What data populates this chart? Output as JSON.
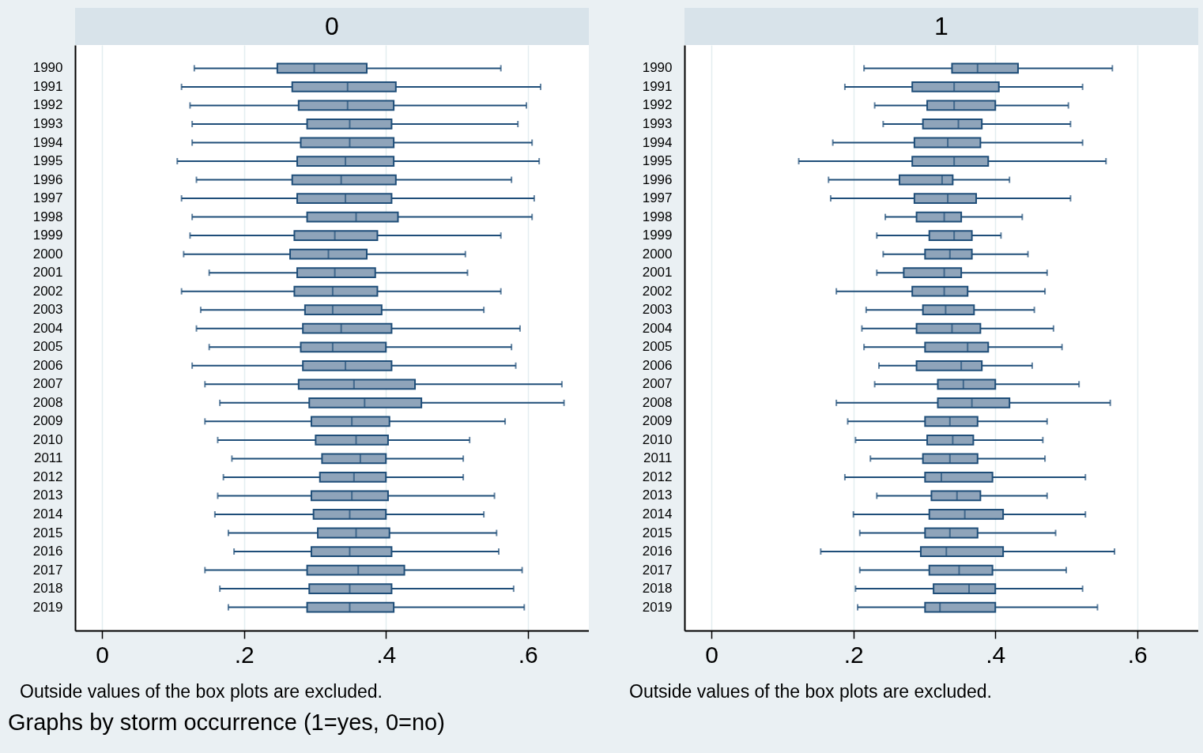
{
  "chart_data": [
    {
      "type": "box",
      "title": "0",
      "orientation": "horizontal",
      "grid": "x",
      "xlim": [
        -0.038,
        0.686
      ],
      "xticks": [
        0,
        {
          "value": 0.2,
          "label": ".2"
        },
        {
          "value": 0.4,
          "label": ".4"
        },
        {
          "value": 0.6,
          "label": ".6"
        }
      ],
      "categories": [
        "1990",
        "1991",
        "1992",
        "1993",
        "1994",
        "1995",
        "1996",
        "1997",
        "1998",
        "1999",
        "2000",
        "2001",
        "2002",
        "2003",
        "2004",
        "2005",
        "2006",
        "2007",
        "2008",
        "2009",
        "2010",
        "2011",
        "2012",
        "2013",
        "2014",
        "2015",
        "2016",
        "2017",
        "2018",
        "2019"
      ],
      "series": [
        {
          "color": "#8fa4ba",
          "boxes": [
            {
              "low": 0.13,
              "q1": 0.247,
              "median": 0.299,
              "q3": 0.373,
              "high": 0.562
            },
            {
              "low": 0.112,
              "q1": 0.268,
              "median": 0.346,
              "q3": 0.414,
              "high": 0.618
            },
            {
              "low": 0.124,
              "q1": 0.277,
              "median": 0.346,
              "q3": 0.411,
              "high": 0.598
            },
            {
              "low": 0.127,
              "q1": 0.289,
              "median": 0.349,
              "q3": 0.408,
              "high": 0.586
            },
            {
              "low": 0.127,
              "q1": 0.28,
              "median": 0.349,
              "q3": 0.411,
              "high": 0.606
            },
            {
              "low": 0.106,
              "q1": 0.275,
              "median": 0.343,
              "q3": 0.411,
              "high": 0.616
            },
            {
              "low": 0.133,
              "q1": 0.268,
              "median": 0.337,
              "q3": 0.414,
              "high": 0.577
            },
            {
              "low": 0.112,
              "q1": 0.275,
              "median": 0.343,
              "q3": 0.408,
              "high": 0.609
            },
            {
              "low": 0.127,
              "q1": 0.289,
              "median": 0.358,
              "q3": 0.417,
              "high": 0.606
            },
            {
              "low": 0.124,
              "q1": 0.271,
              "median": 0.328,
              "q3": 0.388,
              "high": 0.562
            },
            {
              "low": 0.115,
              "q1": 0.265,
              "median": 0.319,
              "q3": 0.373,
              "high": 0.512
            },
            {
              "low": 0.151,
              "q1": 0.275,
              "median": 0.328,
              "q3": 0.385,
              "high": 0.515
            },
            {
              "low": 0.112,
              "q1": 0.271,
              "median": 0.325,
              "q3": 0.388,
              "high": 0.562
            },
            {
              "low": 0.139,
              "q1": 0.286,
              "median": 0.325,
              "q3": 0.394,
              "high": 0.538
            },
            {
              "low": 0.133,
              "q1": 0.283,
              "median": 0.337,
              "q3": 0.408,
              "high": 0.589
            },
            {
              "low": 0.151,
              "q1": 0.28,
              "median": 0.325,
              "q3": 0.4,
              "high": 0.577
            },
            {
              "low": 0.127,
              "q1": 0.283,
              "median": 0.343,
              "q3": 0.408,
              "high": 0.583
            },
            {
              "low": 0.145,
              "q1": 0.277,
              "median": 0.355,
              "q3": 0.441,
              "high": 0.648
            },
            {
              "low": 0.166,
              "q1": 0.292,
              "median": 0.37,
              "q3": 0.45,
              "high": 0.651
            },
            {
              "low": 0.145,
              "q1": 0.295,
              "median": 0.352,
              "q3": 0.405,
              "high": 0.568
            },
            {
              "low": 0.163,
              "q1": 0.301,
              "median": 0.358,
              "q3": 0.403,
              "high": 0.518
            },
            {
              "low": 0.183,
              "q1": 0.31,
              "median": 0.364,
              "q3": 0.4,
              "high": 0.509
            },
            {
              "low": 0.171,
              "q1": 0.307,
              "median": 0.355,
              "q3": 0.4,
              "high": 0.509
            },
            {
              "low": 0.163,
              "q1": 0.295,
              "median": 0.352,
              "q3": 0.403,
              "high": 0.553
            },
            {
              "low": 0.159,
              "q1": 0.298,
              "median": 0.349,
              "q3": 0.4,
              "high": 0.538
            },
            {
              "low": 0.178,
              "q1": 0.304,
              "median": 0.358,
              "q3": 0.405,
              "high": 0.556
            },
            {
              "low": 0.186,
              "q1": 0.295,
              "median": 0.349,
              "q3": 0.408,
              "high": 0.559
            },
            {
              "low": 0.145,
              "q1": 0.289,
              "median": 0.361,
              "q3": 0.426,
              "high": 0.592
            },
            {
              "low": 0.166,
              "q1": 0.292,
              "median": 0.349,
              "q3": 0.408,
              "high": 0.58
            },
            {
              "low": 0.178,
              "q1": 0.289,
              "median": 0.349,
              "q3": 0.411,
              "high": 0.595
            }
          ]
        }
      ],
      "annotations": [
        "Outside values of the box plots are excluded.",
        "Graphs by storm occurrence (1=yes, 0=no)"
      ]
    },
    {
      "type": "box",
      "title": "1",
      "orientation": "horizontal",
      "grid": "x",
      "xlim": [
        -0.038,
        0.686
      ],
      "xticks": [
        0,
        {
          "value": 0.2,
          "label": ".2"
        },
        {
          "value": 0.4,
          "label": ".4"
        },
        {
          "value": 0.6,
          "label": ".6"
        }
      ],
      "categories": [
        "1990",
        "1991",
        "1992",
        "1993",
        "1994",
        "1995",
        "1996",
        "1997",
        "1998",
        "1999",
        "2000",
        "2001",
        "2002",
        "2003",
        "2004",
        "2005",
        "2006",
        "2007",
        "2008",
        "2009",
        "2010",
        "2011",
        "2012",
        "2013",
        "2014",
        "2015",
        "2016",
        "2017",
        "2018",
        "2019"
      ],
      "series": [
        {
          "color": "#8fa4ba",
          "boxes": [
            {
              "low": 0.215,
              "q1": 0.339,
              "median": 0.375,
              "q3": 0.432,
              "high": 0.565
            },
            {
              "low": 0.188,
              "q1": 0.283,
              "median": 0.342,
              "q3": 0.405,
              "high": 0.523
            },
            {
              "low": 0.23,
              "q1": 0.304,
              "median": 0.342,
              "q3": 0.4,
              "high": 0.503
            },
            {
              "low": 0.242,
              "q1": 0.298,
              "median": 0.348,
              "q3": 0.381,
              "high": 0.506
            },
            {
              "low": 0.171,
              "q1": 0.286,
              "median": 0.333,
              "q3": 0.379,
              "high": 0.523
            },
            {
              "low": 0.123,
              "q1": 0.283,
              "median": 0.342,
              "q3": 0.39,
              "high": 0.556
            },
            {
              "low": 0.165,
              "q1": 0.265,
              "median": 0.325,
              "q3": 0.34,
              "high": 0.42
            },
            {
              "low": 0.168,
              "q1": 0.286,
              "median": 0.333,
              "q3": 0.373,
              "high": 0.506
            },
            {
              "low": 0.245,
              "q1": 0.289,
              "median": 0.328,
              "q3": 0.352,
              "high": 0.438
            },
            {
              "low": 0.233,
              "q1": 0.307,
              "median": 0.342,
              "q3": 0.367,
              "high": 0.408
            },
            {
              "low": 0.242,
              "q1": 0.301,
              "median": 0.336,
              "q3": 0.367,
              "high": 0.446
            },
            {
              "low": 0.233,
              "q1": 0.271,
              "median": 0.328,
              "q3": 0.352,
              "high": 0.473
            },
            {
              "low": 0.176,
              "q1": 0.283,
              "median": 0.328,
              "q3": 0.361,
              "high": 0.47
            },
            {
              "low": 0.218,
              "q1": 0.298,
              "median": 0.33,
              "q3": 0.37,
              "high": 0.455
            },
            {
              "low": 0.212,
              "q1": 0.289,
              "median": 0.339,
              "q3": 0.379,
              "high": 0.482
            },
            {
              "low": 0.215,
              "q1": 0.301,
              "median": 0.361,
              "q3": 0.39,
              "high": 0.494
            },
            {
              "low": 0.236,
              "q1": 0.289,
              "median": 0.352,
              "q3": 0.381,
              "high": 0.452
            },
            {
              "low": 0.23,
              "q1": 0.319,
              "median": 0.355,
              "q3": 0.4,
              "high": 0.518
            },
            {
              "low": 0.176,
              "q1": 0.319,
              "median": 0.367,
              "q3": 0.42,
              "high": 0.562
            },
            {
              "low": 0.192,
              "q1": 0.301,
              "median": 0.336,
              "q3": 0.375,
              "high": 0.473
            },
            {
              "low": 0.203,
              "q1": 0.304,
              "median": 0.34,
              "q3": 0.369,
              "high": 0.467
            },
            {
              "low": 0.224,
              "q1": 0.298,
              "median": 0.336,
              "q3": 0.375,
              "high": 0.47
            },
            {
              "low": 0.188,
              "q1": 0.301,
              "median": 0.324,
              "q3": 0.396,
              "high": 0.527
            },
            {
              "low": 0.233,
              "q1": 0.31,
              "median": 0.346,
              "q3": 0.379,
              "high": 0.473
            },
            {
              "low": 0.2,
              "q1": 0.307,
              "median": 0.357,
              "q3": 0.411,
              "high": 0.527
            },
            {
              "low": 0.209,
              "q1": 0.301,
              "median": 0.336,
              "q3": 0.375,
              "high": 0.485
            },
            {
              "low": 0.154,
              "q1": 0.295,
              "median": 0.331,
              "q3": 0.411,
              "high": 0.568
            },
            {
              "low": 0.209,
              "q1": 0.307,
              "median": 0.349,
              "q3": 0.396,
              "high": 0.5
            },
            {
              "low": 0.203,
              "q1": 0.313,
              "median": 0.363,
              "q3": 0.4,
              "high": 0.523
            },
            {
              "low": 0.206,
              "q1": 0.301,
              "median": 0.322,
              "q3": 0.4,
              "high": 0.544
            }
          ]
        }
      ],
      "annotations": [
        "Outside values of the box plots are excluded."
      ]
    }
  ]
}
